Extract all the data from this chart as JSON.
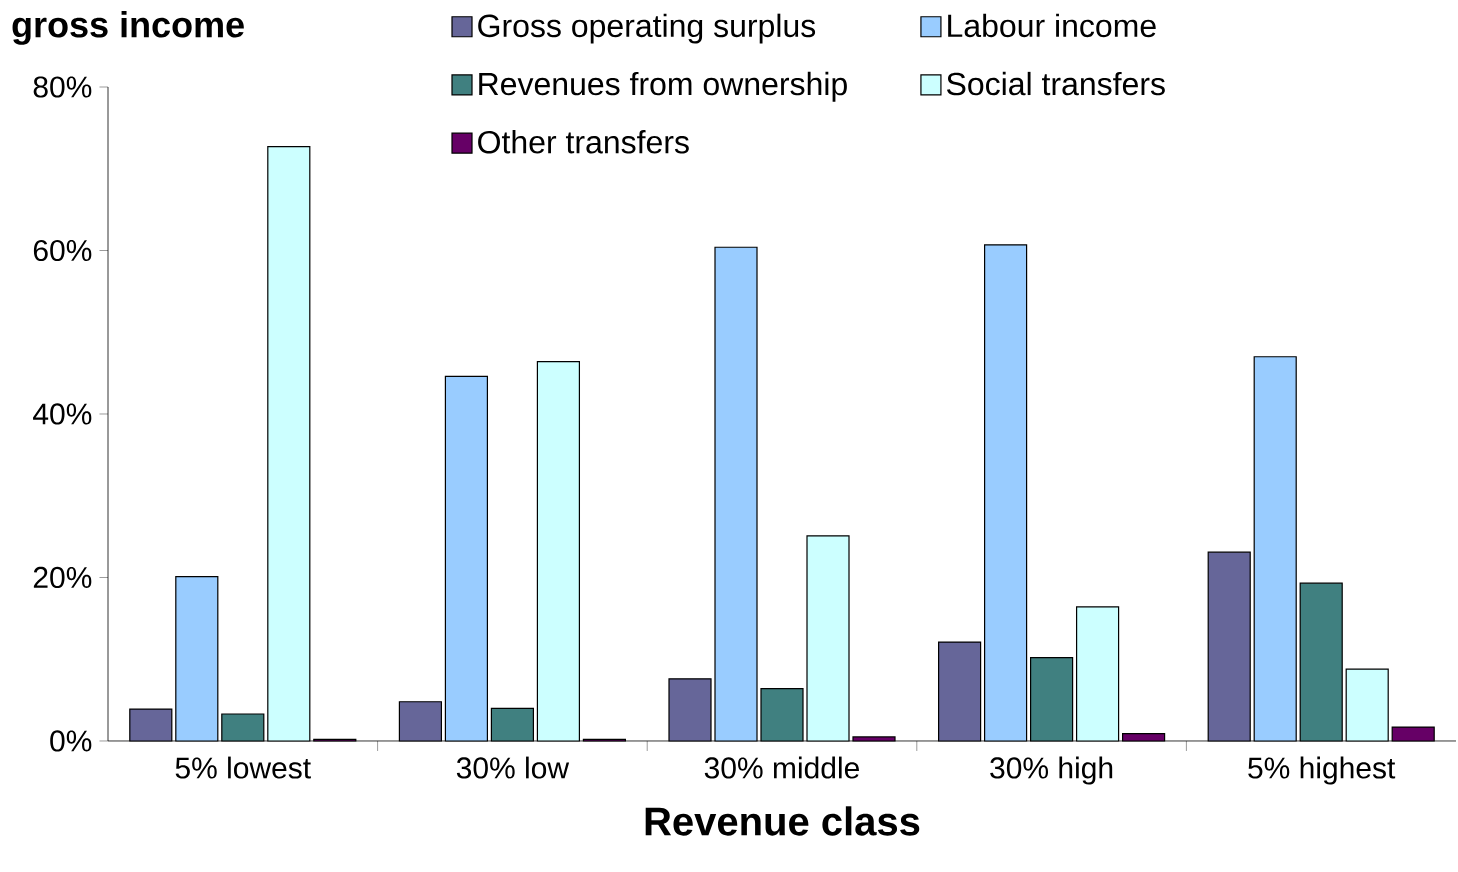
{
  "chart_data": {
    "type": "bar",
    "title": "gross income",
    "xlabel": "Revenue class",
    "categories": [
      "5% lowest",
      "30% low",
      "30% middle",
      "30% high",
      "5% highest"
    ],
    "series": [
      {
        "name": "Gross operating surplus",
        "color": "#666699",
        "values": [
          3.9,
          4.8,
          7.6,
          12.1,
          23.1
        ]
      },
      {
        "name": "Labour income",
        "color": "#99ccff",
        "values": [
          20.1,
          44.6,
          60.4,
          60.7,
          47.0
        ]
      },
      {
        "name": "Revenues from ownership",
        "color": "#408080",
        "values": [
          3.3,
          4.0,
          6.4,
          10.2,
          19.3
        ]
      },
      {
        "name": "Social transfers",
        "color": "#ccffff",
        "values": [
          72.7,
          46.4,
          25.1,
          16.4,
          8.8
        ]
      },
      {
        "name": "Other transfers",
        "color": "#660066",
        "values": [
          0.2,
          0.2,
          0.5,
          0.9,
          1.7
        ]
      }
    ],
    "ylim": [
      0,
      80
    ],
    "yticks": [
      {
        "value": 0,
        "label": "0%"
      },
      {
        "value": 20,
        "label": "20%"
      },
      {
        "value": 40,
        "label": "40%"
      },
      {
        "value": 60,
        "label": "60%"
      },
      {
        "value": 80,
        "label": "80%"
      }
    ],
    "legend": "top"
  }
}
